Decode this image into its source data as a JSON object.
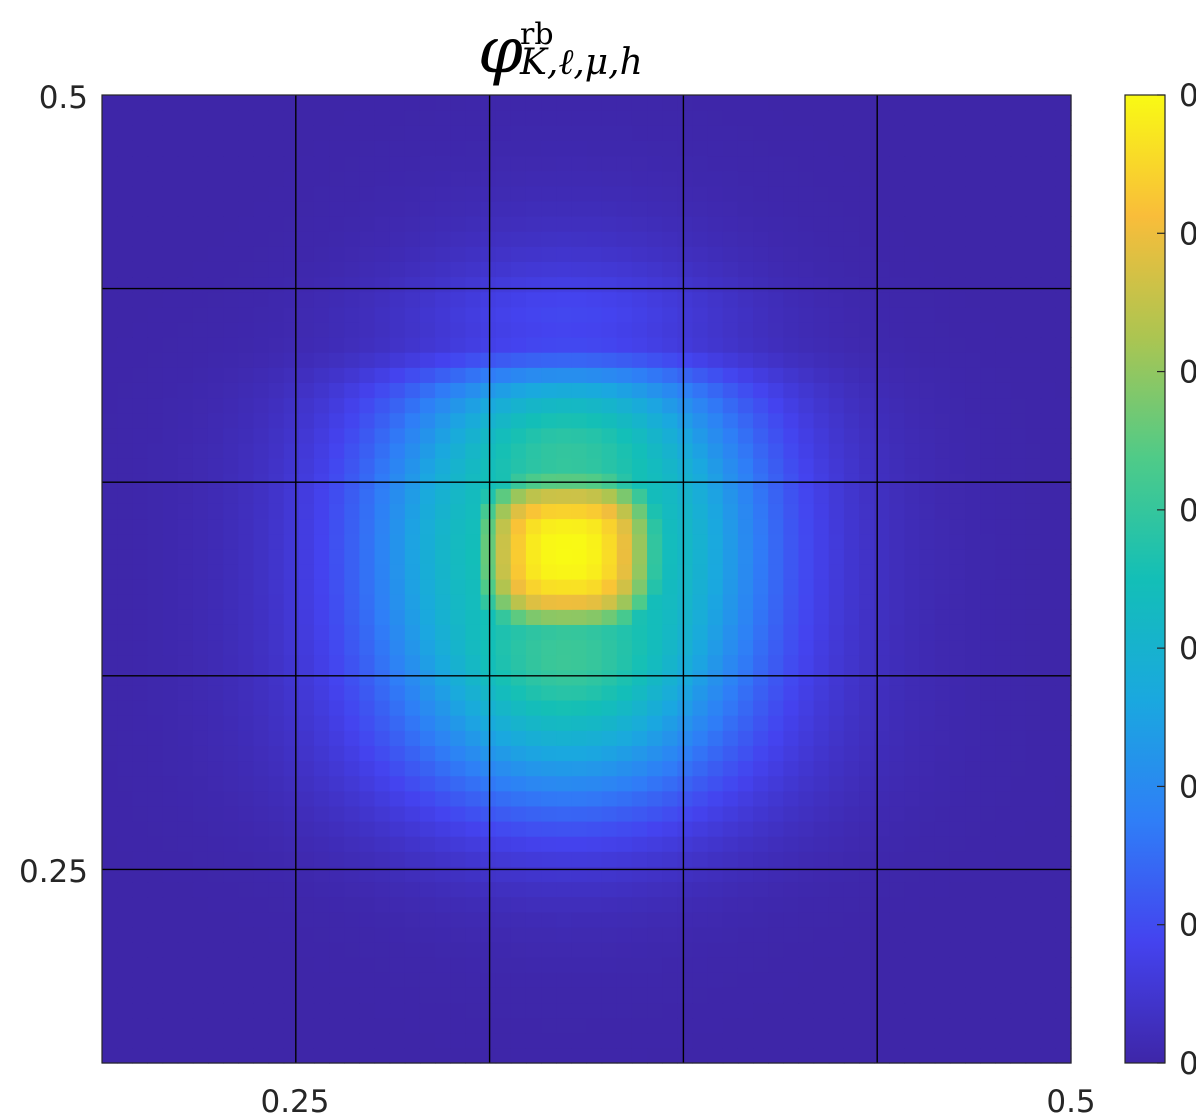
{
  "chart_data": {
    "type": "heatmap",
    "title": {
      "base": "φ",
      "superscript": "rb",
      "subscript": "K,ℓ,μ,h"
    },
    "xlabel": "",
    "ylabel": "",
    "xlim": [
      0.1875,
      0.5
    ],
    "ylim": [
      0.1875,
      0.5
    ],
    "x_ticks": [
      {
        "value": 0.25,
        "label": "0.25"
      },
      {
        "value": 0.5,
        "label": "0.5"
      }
    ],
    "y_ticks": [
      {
        "value": 0.25,
        "label": "0.25"
      },
      {
        "value": 0.5,
        "label": "0.5"
      }
    ],
    "grid": true,
    "mesh_lines": [
      0.25,
      0.3125,
      0.375,
      0.4375
    ],
    "colormap": "parula",
    "colorbar": {
      "location": "right",
      "tick_labels": [
        "0",
        "0",
        "0",
        "0",
        "0",
        "0",
        "0",
        "0"
      ]
    },
    "peak": {
      "x": 0.3375,
      "y": 0.3525,
      "value": 1.0
    },
    "field_description_values": {
      "background": 0.0,
      "low_lobe_band_y_range": [
        0.24,
        0.44
      ],
      "halo_width": 0.042
    }
  },
  "colors": {
    "parula_stops": [
      "#3e26a8",
      "#4443ef",
      "#2f7ef7",
      "#1aa8df",
      "#13bfb7",
      "#4fcb88",
      "#acc551",
      "#f9bd3a",
      "#f9fa14"
    ],
    "mesh_line": "#000000",
    "axis_text": "#262626"
  }
}
